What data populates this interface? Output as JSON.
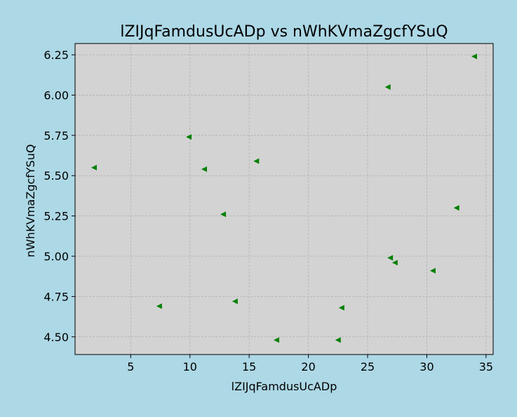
{
  "chart_data": {
    "type": "scatter",
    "title": "lZIJqFamdusUcADp vs nWhKVmaZgcfYSuQ",
    "xlabel": "lZIJqFamdusUcADp",
    "ylabel": "nWhKVmaZgcfYSuQ",
    "xlim": [
      0.3,
      35.6
    ],
    "ylim": [
      4.39,
      6.32
    ],
    "xticks": [
      5,
      10,
      15,
      20,
      25,
      30,
      35
    ],
    "yticks": [
      4.5,
      4.75,
      5.0,
      5.25,
      5.5,
      5.75,
      6.0,
      6.25
    ],
    "ytick_labels": [
      "4.50",
      "4.75",
      "5.00",
      "5.25",
      "5.50",
      "5.75",
      "6.00",
      "6.25"
    ],
    "grid": true,
    "marker": "triangle-left",
    "marker_color": "#008000",
    "plot_background": "#d3d3d3",
    "figure_background": "#add8e6",
    "points": [
      {
        "x": 1.9,
        "y": 5.55
      },
      {
        "x": 7.4,
        "y": 4.69
      },
      {
        "x": 9.9,
        "y": 5.74
      },
      {
        "x": 11.2,
        "y": 5.54
      },
      {
        "x": 12.8,
        "y": 5.26
      },
      {
        "x": 13.8,
        "y": 4.72
      },
      {
        "x": 15.6,
        "y": 5.59
      },
      {
        "x": 17.3,
        "y": 4.48
      },
      {
        "x": 22.5,
        "y": 4.48
      },
      {
        "x": 22.8,
        "y": 4.68
      },
      {
        "x": 26.7,
        "y": 6.05
      },
      {
        "x": 26.9,
        "y": 4.99
      },
      {
        "x": 27.3,
        "y": 4.96
      },
      {
        "x": 30.5,
        "y": 4.91
      },
      {
        "x": 32.5,
        "y": 5.3
      },
      {
        "x": 34.0,
        "y": 6.24
      }
    ]
  }
}
